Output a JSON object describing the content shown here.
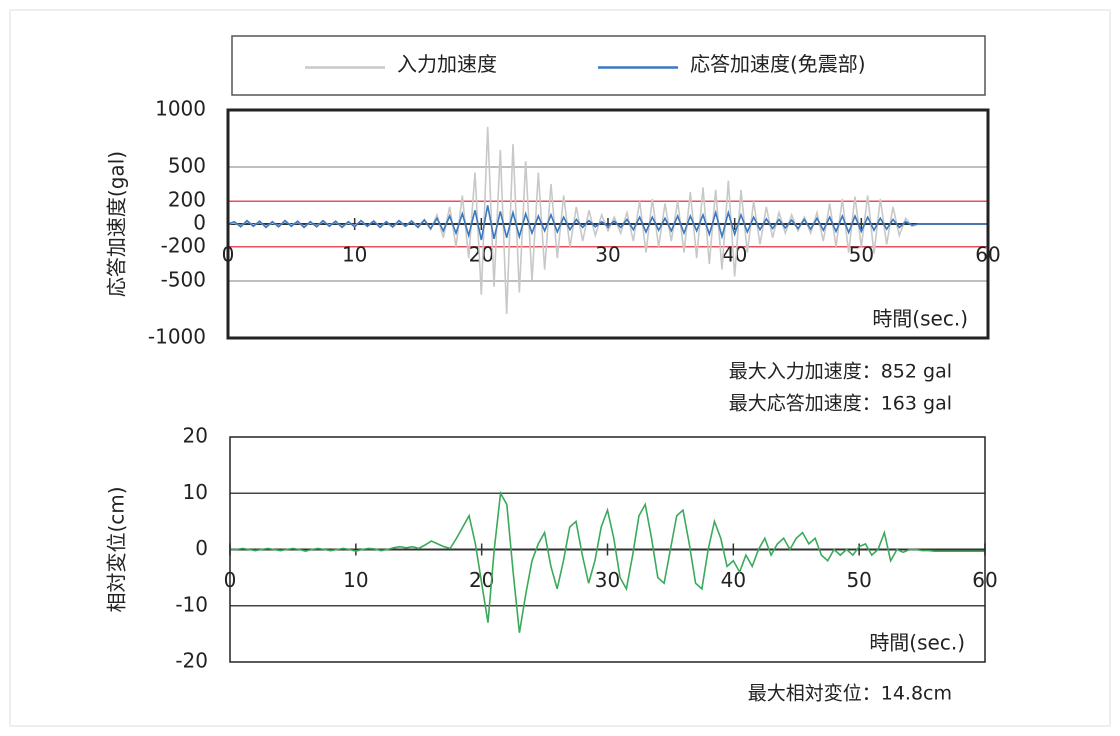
{
  "chart_data": [
    {
      "type": "line",
      "y_label": "応答加速度(gal)",
      "x_label": "時間(sec.)",
      "annotations": [
        "最大入力加速度：852 gal",
        "最大応答加速度：163 gal"
      ],
      "x": [
        0,
        0.5,
        1,
        1.5,
        2,
        2.5,
        3,
        3.5,
        4,
        4.5,
        5,
        5.5,
        6,
        6.5,
        7,
        7.5,
        8,
        8.5,
        9,
        9.5,
        10,
        10.5,
        11,
        11.5,
        12,
        12.5,
        13,
        13.5,
        14,
        14.5,
        15,
        15.5,
        16,
        16.5,
        17,
        17.5,
        18,
        18.5,
        19,
        19.5,
        20,
        20.5,
        21,
        21.5,
        22,
        22.5,
        23,
        23.5,
        24,
        24.5,
        25,
        25.5,
        26,
        26.5,
        27,
        27.5,
        28,
        28.5,
        29,
        29.5,
        30,
        30.5,
        31,
        31.5,
        32,
        32.5,
        33,
        33.5,
        34,
        34.5,
        35,
        35.5,
        36,
        36.5,
        37,
        37.5,
        38,
        38.5,
        39,
        39.5,
        40,
        40.5,
        41,
        41.5,
        42,
        42.5,
        43,
        43.5,
        44,
        44.5,
        45,
        45.5,
        46,
        46.5,
        47,
        47.5,
        48,
        48.5,
        49,
        49.5,
        50,
        50.5,
        51,
        51.5,
        52,
        52.5,
        53,
        53.5,
        54,
        54.5,
        55,
        55.5,
        56,
        56.5,
        57,
        57.5,
        58,
        58.5,
        59,
        59.5,
        60
      ],
      "series": [
        {
          "name": "入力加速度",
          "color": "#c8c8c8",
          "values": [
            0,
            10,
            -15,
            20,
            -10,
            15,
            -20,
            10,
            -15,
            20,
            -10,
            15,
            -20,
            10,
            -15,
            20,
            -10,
            15,
            -20,
            10,
            -15,
            25,
            -20,
            30,
            -25,
            20,
            -30,
            25,
            -20,
            30,
            -25,
            40,
            -50,
            80,
            -120,
            150,
            -200,
            250,
            -300,
            450,
            -620,
            852,
            -550,
            650,
            -790,
            700,
            -600,
            550,
            -500,
            450,
            -400,
            350,
            -300,
            250,
            -200,
            150,
            -150,
            120,
            -100,
            80,
            -60,
            60,
            -80,
            100,
            -150,
            200,
            -250,
            220,
            -200,
            180,
            -150,
            200,
            -250,
            280,
            -300,
            320,
            -350,
            300,
            -400,
            380,
            -460,
            300,
            -250,
            200,
            -180,
            150,
            -120,
            100,
            -80,
            80,
            -60,
            60,
            -80,
            100,
            -150,
            180,
            -200,
            220,
            -250,
            240,
            -200,
            250,
            -260,
            220,
            -180,
            150,
            -100,
            50,
            -20,
            0,
            0,
            0,
            0,
            0,
            0,
            0,
            0,
            0,
            0,
            0,
            0
          ]
        },
        {
          "name": "応答加速度(免震部)",
          "color": "#3a78c0",
          "values": [
            0,
            20,
            -25,
            30,
            -20,
            25,
            -30,
            20,
            -25,
            30,
            -20,
            25,
            -30,
            20,
            -25,
            30,
            -20,
            25,
            -30,
            20,
            -25,
            30,
            -20,
            25,
            -30,
            20,
            -25,
            30,
            -20,
            25,
            -30,
            35,
            -40,
            50,
            -60,
            70,
            -80,
            90,
            -100,
            120,
            -140,
            163,
            -130,
            110,
            -120,
            100,
            -110,
            90,
            -80,
            70,
            -60,
            80,
            -70,
            60,
            -50,
            40,
            -30,
            30,
            -25,
            20,
            -20,
            25,
            -30,
            40,
            -50,
            60,
            -70,
            60,
            -55,
            50,
            -60,
            70,
            -80,
            70,
            -60,
            80,
            -90,
            100,
            -110,
            100,
            -90,
            80,
            -70,
            60,
            -50,
            45,
            -40,
            40,
            -35,
            35,
            -40,
            40,
            -45,
            50,
            -55,
            60,
            -65,
            70,
            -75,
            70,
            -65,
            60,
            -55,
            50,
            -45,
            40,
            -30,
            20,
            -10,
            0,
            0,
            0,
            0,
            0,
            0,
            0,
            0,
            0,
            0,
            0,
            0
          ]
        }
      ],
      "xlim": [
        0,
        60
      ],
      "xticks": [
        0,
        10,
        20,
        30,
        40,
        50,
        60
      ],
      "ylim": [
        -1000,
        1000
      ],
      "yticks": [
        -1000,
        -500,
        -200,
        0,
        200,
        500,
        1000
      ],
      "reference_lines": [
        200,
        -200
      ],
      "reference_color": "#e8505b",
      "grid": true,
      "legend": "top"
    },
    {
      "type": "line",
      "y_label": "相対変位(cm)",
      "x_label": "時間(sec.)",
      "annotations": [
        "最大相対変位：14.8cm"
      ],
      "x": [
        0,
        0.5,
        1,
        1.5,
        2,
        2.5,
        3,
        3.5,
        4,
        4.5,
        5,
        5.5,
        6,
        6.5,
        7,
        7.5,
        8,
        8.5,
        9,
        9.5,
        10,
        10.5,
        11,
        11.5,
        12,
        12.5,
        13,
        13.5,
        14,
        14.5,
        15,
        15.5,
        16,
        16.5,
        17,
        17.5,
        18,
        18.5,
        19,
        19.5,
        20,
        20.5,
        21,
        21.5,
        22,
        22.5,
        23,
        23.5,
        24,
        24.5,
        25,
        25.5,
        26,
        26.5,
        27,
        27.5,
        28,
        28.5,
        29,
        29.5,
        30,
        30.5,
        31,
        31.5,
        32,
        32.5,
        33,
        33.5,
        34,
        34.5,
        35,
        35.5,
        36,
        36.5,
        37,
        37.5,
        38,
        38.5,
        39,
        39.5,
        40,
        40.5,
        41,
        41.5,
        42,
        42.5,
        43,
        43.5,
        44,
        44.5,
        45,
        45.5,
        46,
        46.5,
        47,
        47.5,
        48,
        48.5,
        49,
        49.5,
        50,
        50.5,
        51,
        51.5,
        52,
        52.5,
        53,
        53.5,
        54,
        54.5,
        55,
        55.5,
        56,
        56.5,
        57,
        57.5,
        58,
        58.5,
        59,
        59.5,
        60
      ],
      "series": [
        {
          "color": "#3aaa5a",
          "values": [
            0,
            0,
            0.2,
            0,
            -0.2,
            0,
            0.2,
            0,
            -0.2,
            0,
            0.2,
            0,
            -0.3,
            0,
            0.2,
            0,
            -0.2,
            0,
            0.2,
            0,
            -0.3,
            0,
            0.2,
            0.1,
            -0.2,
            0,
            0.3,
            0.5,
            0.3,
            0.5,
            0.2,
            0.8,
            1.5,
            1,
            0.5,
            0.2,
            2,
            4,
            6,
            1,
            -6,
            -13,
            0,
            10,
            8,
            -4,
            -14.8,
            -8,
            -2,
            1,
            3,
            -3,
            -7,
            -2,
            4,
            5,
            -1,
            -6,
            -2,
            4,
            7,
            2,
            -5,
            -7,
            -1,
            6,
            8,
            2,
            -5,
            -6,
            0,
            6,
            7,
            1,
            -6,
            -7,
            0,
            5,
            2,
            -3,
            -2,
            -4,
            -1,
            -3,
            0,
            2,
            -1,
            1,
            2,
            0,
            2,
            3,
            1,
            2,
            -1,
            -2,
            0,
            -1,
            0,
            -1,
            0.5,
            1,
            -1,
            0,
            3,
            -2,
            0,
            -0.5,
            0,
            0,
            -0.2,
            -0.2,
            -0.3,
            -0.3,
            -0.3,
            -0.3,
            -0.3,
            -0.3,
            -0.3,
            -0.3,
            -0.3
          ]
        }
      ],
      "xlim": [
        0,
        60
      ],
      "xticks": [
        0,
        10,
        20,
        30,
        40,
        50,
        60
      ],
      "ylim": [
        -20,
        20
      ],
      "yticks": [
        -20,
        -10,
        0,
        10,
        20
      ],
      "grid": true
    }
  ]
}
